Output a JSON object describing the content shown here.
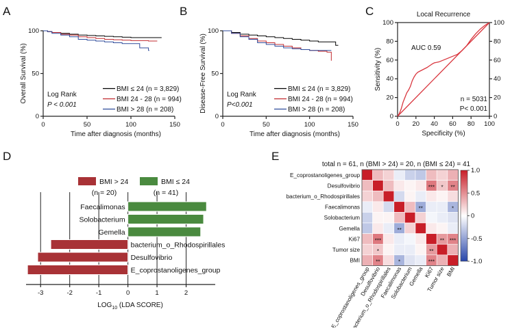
{
  "chart_data": [
    {
      "panel": "A",
      "type": "line",
      "ylabel": "Overall Survival (%)",
      "xlabel": "Time after diagnosis (months)",
      "xlim": [
        0,
        150
      ],
      "ylim": [
        0,
        100
      ],
      "xticks": [
        "0",
        "50",
        "100",
        "150"
      ],
      "yticks": [
        "0",
        "50",
        "100"
      ],
      "stat_lines": [
        "Log Rank",
        "P < 0.001"
      ],
      "series": [
        {
          "name": "BMI ≤ 24 (n = 3,829)",
          "color": "#000000",
          "x": [
            0,
            5,
            10,
            20,
            30,
            40,
            50,
            60,
            70,
            80,
            90,
            100,
            110,
            120,
            130,
            135
          ],
          "y": [
            100,
            99,
            98,
            97,
            96,
            95,
            94.5,
            94,
            93.5,
            93,
            92.5,
            92,
            92,
            92,
            92,
            92
          ]
        },
        {
          "name": "BMI 24 - 28 (n = 994)",
          "color": "#c0282d",
          "x": [
            0,
            5,
            10,
            20,
            30,
            40,
            50,
            60,
            70,
            80,
            90,
            100,
            110,
            120,
            130
          ],
          "y": [
            100,
            99,
            98,
            96,
            95,
            93,
            92,
            91,
            90,
            89.5,
            89,
            88.5,
            88.5,
            88,
            88
          ]
        },
        {
          "name": "BMI > 28 (n = 208)",
          "color": "#2c4a9a",
          "x": [
            0,
            5,
            10,
            20,
            30,
            40,
            50,
            60,
            70,
            80,
            90,
            100,
            110,
            120,
            121
          ],
          "y": [
            100,
            99,
            97,
            95,
            93,
            90,
            89,
            88,
            87,
            86,
            85,
            85,
            80,
            77,
            77
          ]
        }
      ]
    },
    {
      "panel": "B",
      "type": "line",
      "ylabel": "Disease-Free Survival (%)",
      "xlabel": "Time after diagnosis (months)",
      "xlim": [
        0,
        150
      ],
      "ylim": [
        0,
        100
      ],
      "xticks": [
        "0",
        "50",
        "100",
        "150"
      ],
      "yticks": [
        "0",
        "50",
        "100"
      ],
      "stat_lines": [
        "Log Rank",
        "P<0.001"
      ],
      "series": [
        {
          "name": "BMI ≤ 24 (n = 3,829)",
          "color": "#000000",
          "x": [
            0,
            10,
            20,
            30,
            40,
            50,
            60,
            70,
            80,
            90,
            100,
            110,
            120,
            130,
            133
          ],
          "y": [
            100,
            98,
            96,
            95,
            94,
            93,
            92,
            91,
            90,
            89,
            88,
            87,
            87,
            83,
            83
          ]
        },
        {
          "name": "BMI 24 - 28 (n = 994)",
          "color": "#c0282d",
          "x": [
            0,
            10,
            20,
            30,
            40,
            50,
            60,
            70,
            80,
            90,
            100,
            110,
            120,
            125
          ],
          "y": [
            100,
            97,
            94,
            91,
            88,
            86,
            84,
            82,
            80,
            78,
            77,
            76,
            75,
            65
          ]
        },
        {
          "name": "BMI > 28 (n = 208)",
          "color": "#2c4a9a",
          "x": [
            0,
            10,
            20,
            30,
            40,
            50,
            60,
            70,
            80,
            90,
            100,
            110,
            120,
            125
          ],
          "y": [
            100,
            97,
            93,
            90,
            86,
            84,
            82,
            80,
            79,
            78,
            77,
            77,
            77,
            77
          ]
        }
      ]
    },
    {
      "panel": "C",
      "type": "line",
      "title": "Local Recurrence",
      "ylabel": "Sensitivity (%)",
      "xlabel": "Specificity (%)",
      "xlim": [
        0,
        100
      ],
      "ylim": [
        0,
        100
      ],
      "xticks": [
        "0",
        "20",
        "40",
        "60",
        "80",
        "100"
      ],
      "yticks": [
        "0",
        "20",
        "40",
        "60",
        "80",
        "100"
      ],
      "auc": "AUC 0.59",
      "n_text": "n = 5031",
      "p_text": "P< 0.001",
      "series": [
        {
          "name": "ROC",
          "color": "#d9363e",
          "x": [
            0,
            2,
            4,
            6,
            8,
            10,
            12,
            14,
            16,
            18,
            20,
            22,
            24,
            26,
            28,
            30,
            32,
            35,
            38,
            40,
            45,
            50,
            55,
            60,
            65,
            70,
            75,
            80,
            85,
            90,
            95,
            100
          ],
          "y": [
            0,
            3,
            8,
            15,
            20,
            25,
            28,
            32,
            38,
            42,
            45,
            47,
            48,
            49,
            50,
            51,
            52,
            54,
            56,
            57,
            58,
            60,
            62,
            64,
            66,
            70,
            75,
            82,
            88,
            93,
            97,
            100
          ]
        },
        {
          "name": "Reference",
          "color": "#d9363e",
          "x": [
            0,
            100
          ],
          "y": [
            0,
            100
          ]
        }
      ]
    },
    {
      "panel": "D",
      "type": "bar",
      "orientation": "horizontal",
      "xlabel": "LOG",
      "xlabel_sub": "10",
      "xlabel_tail": " (LDA SCORE)",
      "xlim": [
        -3.5,
        3
      ],
      "xticks": [
        "-3",
        "-2",
        "-1",
        "0",
        "1",
        "2"
      ],
      "legend": [
        {
          "label": "BMI > 24",
          "sub": "(n = 20)",
          "color": "#a83236"
        },
        {
          "label": "BMI ≤ 24",
          "sub": "(n = 41)",
          "color": "#4a8a3f"
        }
      ],
      "categories": [
        "Faecalimonas",
        "Solobacterium",
        "Gemella",
        "bacterium_o_Rhodospirillales",
        "Desulfovibrio",
        "E_coprostanoligenes_group"
      ],
      "values": [
        2.7,
        2.6,
        2.5,
        -2.65,
        -3.1,
        -3.45
      ],
      "colors": [
        "#4a8a3f",
        "#4a8a3f",
        "#4a8a3f",
        "#a83236",
        "#a83236",
        "#a83236"
      ]
    },
    {
      "panel": "E",
      "type": "heatmap",
      "title": "total n = 61, n (BMI > 24) = 20, n (BMI ≤ 24) = 41",
      "labels": [
        "E_coprostanoligenes_group",
        "Desulfovibrio",
        "bacterium_o_Rhodospirillales",
        "Faecalimonas",
        "Solobacterium",
        "Gemella",
        "Ki67",
        "Tumor size",
        "BMI"
      ],
      "colorbar_ticks": [
        "1.0",
        "0.5",
        "0",
        "-0.5",
        "-1.0"
      ],
      "matrix": [
        [
          1.0,
          0.3,
          0.2,
          -0.1,
          -0.25,
          -0.3,
          0.3,
          0.2,
          0.35
        ],
        [
          0.3,
          1.0,
          0.3,
          0.1,
          0.05,
          0.1,
          0.6,
          0.25,
          0.55
        ],
        [
          0.2,
          0.3,
          1.0,
          -0.2,
          0.05,
          -0.1,
          0.1,
          0.05,
          0.15
        ],
        [
          -0.1,
          0.1,
          -0.2,
          1.0,
          0.3,
          -0.45,
          -0.1,
          -0.1,
          -0.4
        ],
        [
          -0.25,
          0.05,
          0.05,
          0.3,
          1.0,
          0.2,
          -0.05,
          -0.1,
          -0.15
        ],
        [
          -0.3,
          0.1,
          -0.1,
          -0.45,
          0.2,
          1.0,
          0.1,
          0.05,
          -0.1
        ],
        [
          0.3,
          0.6,
          0.1,
          -0.1,
          -0.05,
          0.1,
          1.0,
          0.45,
          0.55
        ],
        [
          0.2,
          0.25,
          0.05,
          -0.1,
          -0.1,
          0.05,
          0.45,
          1.0,
          0.35
        ],
        [
          0.35,
          0.55,
          0.15,
          -0.4,
          -0.15,
          -0.1,
          0.55,
          0.35,
          1.0
        ]
      ],
      "stars": [
        [
          "",
          "",
          "",
          "",
          "",
          "",
          "",
          "",
          ""
        ],
        [
          "",
          "",
          "",
          "",
          "",
          "",
          "***",
          "*",
          "**"
        ],
        [
          "",
          "",
          "",
          "",
          "",
          "",
          "",
          "",
          ""
        ],
        [
          "",
          "",
          "",
          "",
          "",
          "**",
          "",
          "",
          "*"
        ],
        [
          "",
          "",
          "",
          "",
          "",
          "",
          "",
          "",
          ""
        ],
        [
          "",
          "",
          "",
          "**",
          "",
          "",
          "",
          "",
          ""
        ],
        [
          "",
          "***",
          "",
          "",
          "",
          "",
          "",
          "**",
          "***"
        ],
        [
          "",
          "*",
          "",
          "",
          "",
          "",
          "**",
          "",
          ""
        ],
        [
          "",
          "**",
          "",
          "*",
          "",
          "",
          "***",
          "",
          ""
        ]
      ]
    }
  ]
}
